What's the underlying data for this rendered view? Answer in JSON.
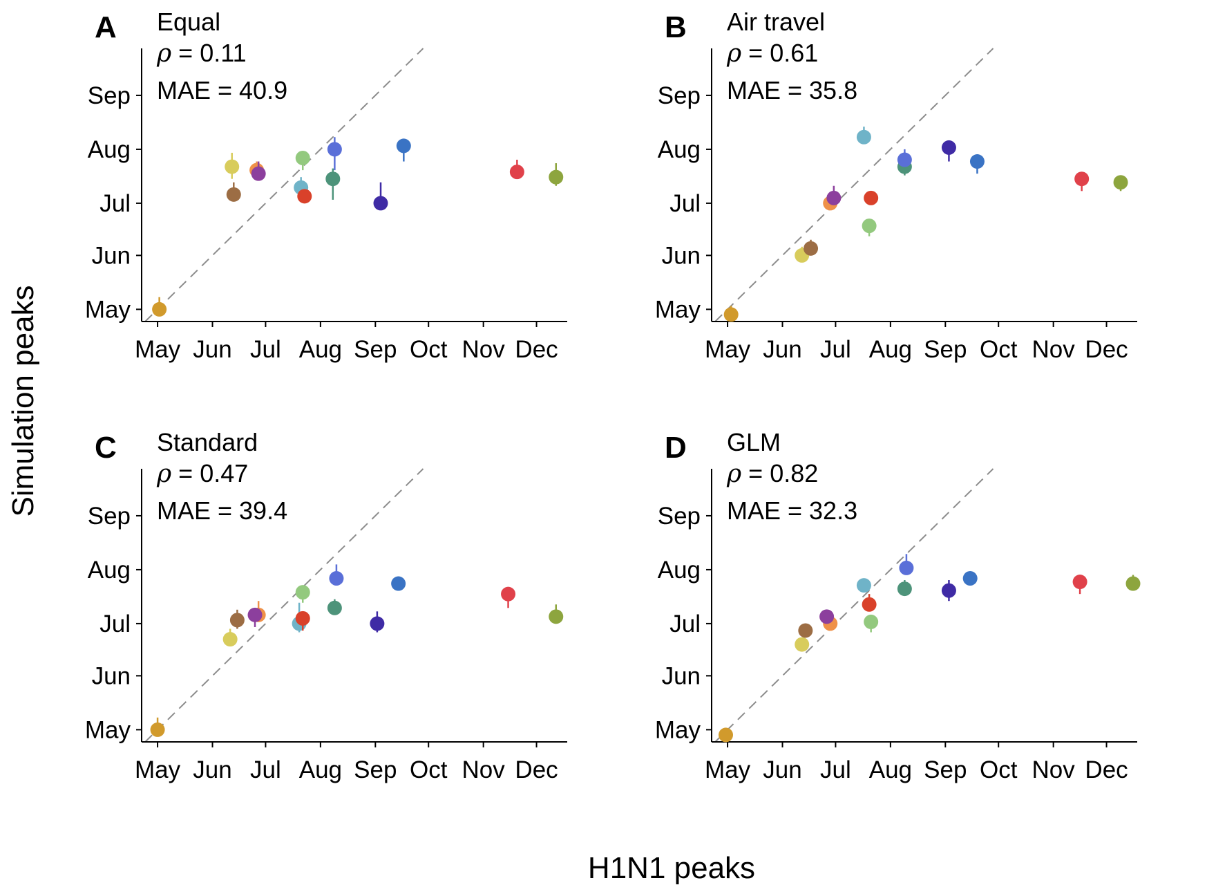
{
  "figure": {
    "ylabel": "Simulation peaks",
    "xlabel": "H1N1 peaks"
  },
  "chart_data": [
    {
      "type": "scatter",
      "panel_letter": "A",
      "title": "Equal",
      "rho_label": "= 0.11",
      "mae_label": "MAE = 40.9",
      "x_ticks": [
        "May",
        "Jun",
        "Jul",
        "Aug",
        "Sep",
        "Oct",
        "Nov",
        "Dec"
      ],
      "y_ticks": [
        "May",
        "Jun",
        "Jul",
        "Aug",
        "Sep"
      ],
      "x_lim": [
        "Apr 22",
        "Dec 16"
      ],
      "y_lim": [
        "Apr 24",
        "Sep 28"
      ],
      "reference_line": "y = x (dashed)",
      "points": [
        {
          "x": "May 2",
          "y": "May 1",
          "err": [
            "May 1",
            "May 8"
          ],
          "color": "#d19a2c"
        },
        {
          "x": "Jun 12",
          "y": "Jul 22",
          "err": [
            "Jul 15",
            "Jul 30"
          ],
          "color": "#d8cc5c"
        },
        {
          "x": "Jun 13",
          "y": "Jul 6",
          "err": [
            "Jul 6",
            "Jul 13"
          ],
          "color": "#9c6d44"
        },
        {
          "x": "Jun 26",
          "y": "Jul 20",
          "err": [
            "Jul 15",
            "Jul 25"
          ],
          "color": "#ef9148"
        },
        {
          "x": "Jun 27",
          "y": "Jul 18",
          "err": [
            "Jul 14",
            "Jul 25"
          ],
          "color": "#8c3f9d"
        },
        {
          "x": "Jul 21",
          "y": "Jul 10",
          "err": [
            "Jul 2",
            "Jul 16"
          ],
          "color": "#6fb3c8"
        },
        {
          "x": "Jul 22",
          "y": "Jul 27",
          "err": [
            "Jul 20",
            "Jul 27"
          ],
          "color": "#93c97e"
        },
        {
          "x": "Jul 23",
          "y": "Jul 5",
          "err": [
            "Jul 5",
            "Jul 9"
          ],
          "color": "#d9412a"
        },
        {
          "x": "Aug 8",
          "y": "Jul 15",
          "err": [
            "Jul 3",
            "Jul 21"
          ],
          "color": "#4d937a"
        },
        {
          "x": "Aug 9",
          "y": "Aug 1",
          "err": [
            "Jul 20",
            "Aug 8"
          ],
          "color": "#5a6fd8"
        },
        {
          "x": "Sep 4",
          "y": "Jul 1",
          "err": [
            "Jun 27",
            "Jul 13"
          ],
          "color": "#3f2ba5"
        },
        {
          "x": "Sep 17",
          "y": "Aug 3",
          "err": [
            "Jul 25",
            "Aug 3"
          ],
          "color": "#3a73c4"
        },
        {
          "x": "Nov 20",
          "y": "Jul 19",
          "err": [
            "Jul 19",
            "Jul 26"
          ],
          "color": "#e0414a"
        },
        {
          "x": "Dec 12",
          "y": "Jul 16",
          "err": [
            "Jul 11",
            "Jul 24"
          ],
          "color": "#8da53e"
        }
      ]
    },
    {
      "type": "scatter",
      "panel_letter": "B",
      "title": "Air travel",
      "rho_label": "= 0.61",
      "mae_label": "MAE = 35.8",
      "x_ticks": [
        "May",
        "Jun",
        "Jul",
        "Aug",
        "Sep",
        "Oct",
        "Nov",
        "Dec"
      ],
      "y_ticks": [
        "May",
        "Jun",
        "Jul",
        "Aug",
        "Sep"
      ],
      "x_lim": [
        "Apr 22",
        "Dec 16"
      ],
      "y_lim": [
        "Apr 24",
        "Sep 28"
      ],
      "reference_line": "y = x (dashed)",
      "points": [
        {
          "x": "May 3",
          "y": "Apr 28",
          "err": [
            "Apr 25",
            "May 3"
          ],
          "color": "#d19a2c"
        },
        {
          "x": "Jun 12",
          "y": "Jun 1",
          "err": [
            "Jun 1",
            "Jun 6"
          ],
          "color": "#d8cc5c"
        },
        {
          "x": "Jun 17",
          "y": "Jun 5",
          "err": [
            "Jun 1",
            "Jun 10"
          ],
          "color": "#9c6d44"
        },
        {
          "x": "Jun 28",
          "y": "Jul 1",
          "err": [
            "Jun 29",
            "Jul 6"
          ],
          "color": "#ef9148"
        },
        {
          "x": "Jun 30",
          "y": "Jul 4",
          "err": [
            "Jul 4",
            "Jul 11"
          ],
          "color": "#8c3f9d"
        },
        {
          "x": "Jul 17",
          "y": "Aug 8",
          "err": [
            "Aug 8",
            "Aug 14"
          ],
          "color": "#6fb3c8"
        },
        {
          "x": "Jul 20",
          "y": "Jun 18",
          "err": [
            "Jun 12",
            "Jun 20"
          ],
          "color": "#93c97e"
        },
        {
          "x": "Jul 21",
          "y": "Jul 4",
          "err": [
            "Jul 4",
            "Jul 8"
          ],
          "color": "#d9412a"
        },
        {
          "x": "Aug 9",
          "y": "Jul 22",
          "err": [
            "Jul 17",
            "Jul 26"
          ],
          "color": "#4d937a"
        },
        {
          "x": "Aug 9",
          "y": "Jul 26",
          "err": [
            "Jul 26",
            "Aug 1"
          ],
          "color": "#5a6fd8"
        },
        {
          "x": "Sep 3",
          "y": "Aug 2",
          "err": [
            "Jul 25",
            "Aug 2"
          ],
          "color": "#3f2ba5"
        },
        {
          "x": "Sep 19",
          "y": "Jul 25",
          "err": [
            "Jul 18",
            "Jul 25"
          ],
          "color": "#3a73c4"
        },
        {
          "x": "Nov 17",
          "y": "Jul 15",
          "err": [
            "Jul 8",
            "Jul 19"
          ],
          "color": "#e0414a"
        },
        {
          "x": "Dec 9",
          "y": "Jul 13",
          "err": [
            "Jul 8",
            "Jul 16"
          ],
          "color": "#8da53e"
        }
      ]
    },
    {
      "type": "scatter",
      "panel_letter": "C",
      "title": "Standard",
      "rho_label": "= 0.47",
      "mae_label": "MAE = 39.4",
      "x_ticks": [
        "May",
        "Jun",
        "Jul",
        "Aug",
        "Sep",
        "Oct",
        "Nov",
        "Dec"
      ],
      "y_ticks": [
        "May",
        "Jun",
        "Jul",
        "Aug",
        "Sep"
      ],
      "x_lim": [
        "Apr 22",
        "Dec 16"
      ],
      "y_lim": [
        "Apr 24",
        "Sep 28"
      ],
      "reference_line": "y = x (dashed)",
      "points": [
        {
          "x": "May 1",
          "y": "May 1",
          "err": [
            "Apr 29",
            "May 8"
          ],
          "color": "#d19a2c"
        },
        {
          "x": "Jun 11",
          "y": "Jun 22",
          "err": [
            "Jun 22",
            "Jun 28"
          ],
          "color": "#d8cc5c"
        },
        {
          "x": "Jun 15",
          "y": "Jul 3",
          "err": [
            "Jun 28",
            "Jul 9"
          ],
          "color": "#9c6d44"
        },
        {
          "x": "Jun 27",
          "y": "Jul 6",
          "err": [
            "Jul 6",
            "Jul 14"
          ],
          "color": "#ef9148"
        },
        {
          "x": "Jun 25",
          "y": "Jul 6",
          "err": [
            "Jun 29",
            "Jul 6"
          ],
          "color": "#8c3f9d"
        },
        {
          "x": "Jul 20",
          "y": "Jul 1",
          "err": [
            "Jun 26",
            "Jul 13"
          ],
          "color": "#6fb3c8"
        },
        {
          "x": "Jul 22",
          "y": "Jul 19",
          "err": [
            "Jul 13",
            "Jul 19"
          ],
          "color": "#93c97e"
        },
        {
          "x": "Jul 22",
          "y": "Jul 4",
          "err": [
            "Jun 27",
            "Jul 4"
          ],
          "color": "#d9412a"
        },
        {
          "x": "Aug 9",
          "y": "Jul 10",
          "err": [
            "Jul 6",
            "Jul 15"
          ],
          "color": "#4d937a"
        },
        {
          "x": "Aug 10",
          "y": "Jul 27",
          "err": [
            "Jul 27",
            "Aug 4"
          ],
          "color": "#5a6fd8"
        },
        {
          "x": "Sep 2",
          "y": "Jul 1",
          "err": [
            "Jun 26",
            "Jul 8"
          ],
          "color": "#3f2ba5"
        },
        {
          "x": "Sep 14",
          "y": "Jul 24",
          "err": [
            "Jul 20",
            "Jul 28"
          ],
          "color": "#3a73c4"
        },
        {
          "x": "Nov 15",
          "y": "Jul 18",
          "err": [
            "Jul 10",
            "Jul 22"
          ],
          "color": "#e0414a"
        },
        {
          "x": "Dec 12",
          "y": "Jul 5",
          "err": [
            "Jul 2",
            "Jul 12"
          ],
          "color": "#8da53e"
        }
      ]
    },
    {
      "type": "scatter",
      "panel_letter": "D",
      "title": "GLM",
      "rho_label": "= 0.82",
      "mae_label": "MAE = 32.3",
      "x_ticks": [
        "May",
        "Jun",
        "Jul",
        "Aug",
        "Sep",
        "Oct",
        "Nov",
        "Dec"
      ],
      "y_ticks": [
        "May",
        "Jun",
        "Jul",
        "Aug",
        "Sep"
      ],
      "x_lim": [
        "Apr 22",
        "Dec 16"
      ],
      "y_lim": [
        "Apr 24",
        "Sep 28"
      ],
      "reference_line": "y = x (dashed)",
      "points": [
        {
          "x": "Apr 30",
          "y": "Apr 28",
          "err": [
            "Apr 24",
            "Apr 28"
          ],
          "color": "#d19a2c"
        },
        {
          "x": "Jun 12",
          "y": "Jun 19",
          "err": [
            "Jun 19",
            "Jun 22"
          ],
          "color": "#d8cc5c"
        },
        {
          "x": "Jun 14",
          "y": "Jun 27",
          "err": [
            "Jun 23",
            "Jun 27"
          ],
          "color": "#9c6d44"
        },
        {
          "x": "Jun 28",
          "y": "Jul 1",
          "err": [
            "Jul 1",
            "Jul 5"
          ],
          "color": "#ef9148"
        },
        {
          "x": "Jun 26",
          "y": "Jul 5",
          "err": [
            "Jul 5",
            "Jul 8"
          ],
          "color": "#8c3f9d"
        },
        {
          "x": "Jul 17",
          "y": "Jul 23",
          "err": [
            "Jul 19",
            "Jul 26"
          ],
          "color": "#6fb3c8"
        },
        {
          "x": "Jul 21",
          "y": "Jul 2",
          "err": [
            "Jun 26",
            "Jul 2"
          ],
          "color": "#93c97e"
        },
        {
          "x": "Jul 20",
          "y": "Jul 12",
          "err": [
            "Jul 12",
            "Jul 18"
          ],
          "color": "#d9412a"
        },
        {
          "x": "Aug 9",
          "y": "Jul 21",
          "err": [
            "Jul 18",
            "Jul 26"
          ],
          "color": "#4d937a"
        },
        {
          "x": "Aug 10",
          "y": "Aug 2",
          "err": [
            "Aug 2",
            "Aug 10"
          ],
          "color": "#5a6fd8"
        },
        {
          "x": "Sep 3",
          "y": "Jul 20",
          "err": [
            "Jul 14",
            "Jul 26"
          ],
          "color": "#3f2ba5"
        },
        {
          "x": "Sep 15",
          "y": "Jul 27",
          "err": [
            "Jul 23",
            "Jul 31"
          ],
          "color": "#3a73c4"
        },
        {
          "x": "Nov 16",
          "y": "Jul 25",
          "err": [
            "Jul 18",
            "Jul 25"
          ],
          "color": "#e0414a"
        },
        {
          "x": "Dec 16",
          "y": "Jul 24",
          "err": [
            "Jul 21",
            "Jul 29"
          ],
          "color": "#8da53e"
        }
      ]
    }
  ]
}
